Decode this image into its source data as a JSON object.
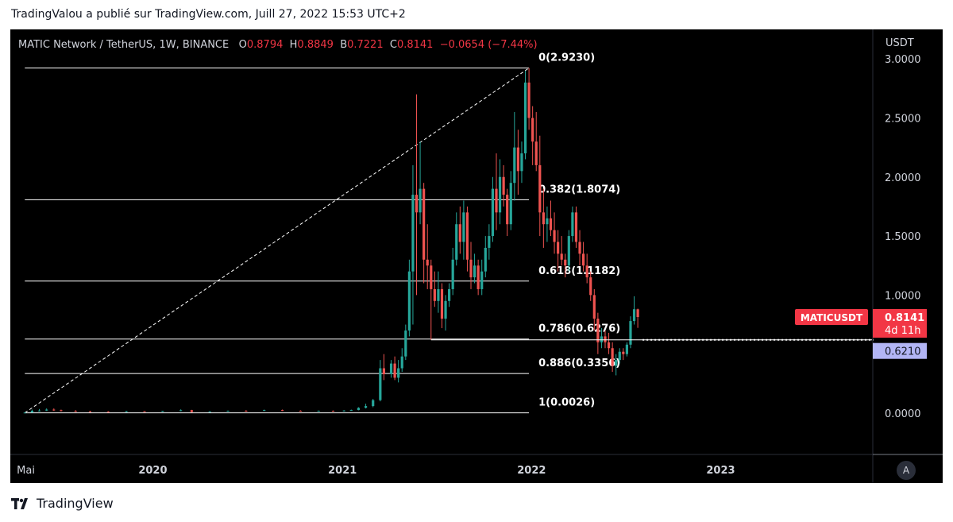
{
  "publisher_line": "TradingValou a publié sur TradingView.com, Juill 27, 2022 15:53 UTC+2",
  "brand": "TradingView",
  "legend": {
    "symbol": "MATIC Network / TetherUS, 1W, BINANCE",
    "o_label": "O",
    "o": "0.8794",
    "h_label": "H",
    "h": "0.8849",
    "l_label": "B",
    "l": "0.7221",
    "c_label": "C",
    "c": "0.8141",
    "change": "−0.0654 (−7.44%)"
  },
  "axis_unit": "USDT",
  "auto_button": "A",
  "price_labels": {
    "symbol_tag": "MATICUSDT",
    "last_price": "0.8141",
    "countdown": "4d 11h",
    "line_price": "0.6210"
  },
  "colors": {
    "up": "#26a69a",
    "down": "#ef5350",
    "fib_line": "#ffffff",
    "tag": "#f23645",
    "line_tag": "#b2b5f5"
  },
  "chart_data": {
    "type": "candlestick",
    "y_ticks": [
      "3.0000",
      "2.5000",
      "2.0000",
      "1.5000",
      "1.0000",
      "0.0000"
    ],
    "y_tick_values": [
      3.0,
      2.5,
      2.0,
      1.5,
      1.0,
      0.0
    ],
    "x_ticks": [
      "Mai",
      "2020",
      "2021",
      "2022",
      "2023"
    ],
    "x_tick_dates": [
      "2019-05-01",
      "2020-01-01",
      "2021-01-01",
      "2022-01-01",
      "2023-01-01"
    ],
    "ylim": [
      -0.35,
      3.25
    ],
    "xlim": [
      "2019-04-01",
      "2023-10-20"
    ],
    "fib_anchor_start": {
      "date": "2019-04-29",
      "price": 0.0026
    },
    "fib_anchor_end": {
      "date": "2021-12-27",
      "price": 2.923
    },
    "fib_levels": [
      {
        "label": "0(2.9230)",
        "price": 2.923
      },
      {
        "label": "0.382(1.8074)",
        "price": 1.8074
      },
      {
        "label": "0.618(1.1182)",
        "price": 1.1182
      },
      {
        "label": "0.786(0.6276)",
        "price": 0.6276
      },
      {
        "label": "0.886(0.3356)",
        "price": 0.3356
      },
      {
        "label": "1(0.0026)",
        "price": 0.0026
      }
    ],
    "horizontal_ray": {
      "date_start": "2021-06-21",
      "price": 0.621
    },
    "last_close": 0.8141,
    "candles": [
      {
        "date": "2019-04-29",
        "o": 0.003,
        "h": 0.006,
        "l": 0.002,
        "c": 0.005
      },
      {
        "date": "2019-05-13",
        "o": 0.005,
        "h": 0.03,
        "l": 0.005,
        "c": 0.02
      },
      {
        "date": "2019-05-27",
        "o": 0.02,
        "h": 0.035,
        "l": 0.015,
        "c": 0.022
      },
      {
        "date": "2019-06-10",
        "o": 0.022,
        "h": 0.04,
        "l": 0.018,
        "c": 0.03
      },
      {
        "date": "2019-06-24",
        "o": 0.03,
        "h": 0.04,
        "l": 0.02,
        "c": 0.025
      },
      {
        "date": "2019-07-08",
        "o": 0.025,
        "h": 0.03,
        "l": 0.015,
        "c": 0.018
      },
      {
        "date": "2019-08-05",
        "o": 0.018,
        "h": 0.025,
        "l": 0.012,
        "c": 0.015
      },
      {
        "date": "2019-09-02",
        "o": 0.015,
        "h": 0.02,
        "l": 0.01,
        "c": 0.012
      },
      {
        "date": "2019-10-07",
        "o": 0.012,
        "h": 0.016,
        "l": 0.008,
        "c": 0.01
      },
      {
        "date": "2019-11-11",
        "o": 0.01,
        "h": 0.02,
        "l": 0.009,
        "c": 0.016
      },
      {
        "date": "2019-12-16",
        "o": 0.016,
        "h": 0.018,
        "l": 0.01,
        "c": 0.012
      },
      {
        "date": "2020-01-20",
        "o": 0.012,
        "h": 0.02,
        "l": 0.011,
        "c": 0.018
      },
      {
        "date": "2020-02-24",
        "o": 0.018,
        "h": 0.032,
        "l": 0.016,
        "c": 0.025
      },
      {
        "date": "2020-03-16",
        "o": 0.025,
        "h": 0.028,
        "l": 0.006,
        "c": 0.01
      },
      {
        "date": "2020-04-20",
        "o": 0.01,
        "h": 0.016,
        "l": 0.009,
        "c": 0.014
      },
      {
        "date": "2020-05-25",
        "o": 0.014,
        "h": 0.022,
        "l": 0.013,
        "c": 0.02
      },
      {
        "date": "2020-06-29",
        "o": 0.02,
        "h": 0.025,
        "l": 0.017,
        "c": 0.019
      },
      {
        "date": "2020-08-03",
        "o": 0.019,
        "h": 0.03,
        "l": 0.018,
        "c": 0.026
      },
      {
        "date": "2020-09-07",
        "o": 0.026,
        "h": 0.03,
        "l": 0.018,
        "c": 0.02
      },
      {
        "date": "2020-10-12",
        "o": 0.02,
        "h": 0.024,
        "l": 0.015,
        "c": 0.017
      },
      {
        "date": "2020-11-16",
        "o": 0.017,
        "h": 0.022,
        "l": 0.015,
        "c": 0.02
      },
      {
        "date": "2020-12-14",
        "o": 0.02,
        "h": 0.022,
        "l": 0.016,
        "c": 0.018
      },
      {
        "date": "2021-01-04",
        "o": 0.018,
        "h": 0.025,
        "l": 0.016,
        "c": 0.022
      },
      {
        "date": "2021-01-18",
        "o": 0.022,
        "h": 0.03,
        "l": 0.02,
        "c": 0.026
      },
      {
        "date": "2021-02-01",
        "o": 0.026,
        "h": 0.05,
        "l": 0.024,
        "c": 0.045
      },
      {
        "date": "2021-02-15",
        "o": 0.045,
        "h": 0.08,
        "l": 0.04,
        "c": 0.06
      },
      {
        "date": "2021-03-01",
        "o": 0.06,
        "h": 0.12,
        "l": 0.05,
        "c": 0.11
      },
      {
        "date": "2021-03-15",
        "o": 0.11,
        "h": 0.45,
        "l": 0.1,
        "c": 0.38
      },
      {
        "date": "2021-03-22",
        "o": 0.38,
        "h": 0.5,
        "l": 0.28,
        "c": 0.33
      },
      {
        "date": "2021-04-05",
        "o": 0.33,
        "h": 0.45,
        "l": 0.3,
        "c": 0.42
      },
      {
        "date": "2021-04-12",
        "o": 0.42,
        "h": 0.48,
        "l": 0.28,
        "c": 0.3
      },
      {
        "date": "2021-04-19",
        "o": 0.3,
        "h": 0.45,
        "l": 0.26,
        "c": 0.38
      },
      {
        "date": "2021-04-26",
        "o": 0.38,
        "h": 0.55,
        "l": 0.35,
        "c": 0.48
      },
      {
        "date": "2021-05-03",
        "o": 0.48,
        "h": 0.75,
        "l": 0.45,
        "c": 0.7
      },
      {
        "date": "2021-05-10",
        "o": 0.7,
        "h": 1.3,
        "l": 0.65,
        "c": 1.2
      },
      {
        "date": "2021-05-17",
        "o": 1.2,
        "h": 2.1,
        "l": 0.75,
        "c": 1.85
      },
      {
        "date": "2021-05-24",
        "o": 1.85,
        "h": 2.7,
        "l": 1.0,
        "c": 1.7
      },
      {
        "date": "2021-05-31",
        "o": 1.7,
        "h": 2.3,
        "l": 1.6,
        "c": 1.9
      },
      {
        "date": "2021-06-07",
        "o": 1.9,
        "h": 1.95,
        "l": 1.1,
        "c": 1.3
      },
      {
        "date": "2021-06-14",
        "o": 1.3,
        "h": 1.6,
        "l": 1.05,
        "c": 1.25
      },
      {
        "date": "2021-06-21",
        "o": 1.25,
        "h": 1.3,
        "l": 0.62,
        "c": 1.05
      },
      {
        "date": "2021-06-28",
        "o": 1.05,
        "h": 1.2,
        "l": 0.9,
        "c": 0.95
      },
      {
        "date": "2021-07-05",
        "o": 0.95,
        "h": 1.2,
        "l": 0.85,
        "c": 1.05
      },
      {
        "date": "2021-07-12",
        "o": 1.05,
        "h": 1.1,
        "l": 0.72,
        "c": 0.8
      },
      {
        "date": "2021-07-19",
        "o": 0.8,
        "h": 1.0,
        "l": 0.7,
        "c": 0.95
      },
      {
        "date": "2021-07-26",
        "o": 0.95,
        "h": 1.1,
        "l": 0.9,
        "c": 1.05
      },
      {
        "date": "2021-08-02",
        "o": 1.05,
        "h": 1.4,
        "l": 1.0,
        "c": 1.3
      },
      {
        "date": "2021-08-09",
        "o": 1.3,
        "h": 1.7,
        "l": 1.25,
        "c": 1.6
      },
      {
        "date": "2021-08-16",
        "o": 1.6,
        "h": 1.75,
        "l": 1.35,
        "c": 1.45
      },
      {
        "date": "2021-08-23",
        "o": 1.45,
        "h": 1.8,
        "l": 1.3,
        "c": 1.7
      },
      {
        "date": "2021-08-30",
        "o": 1.7,
        "h": 1.75,
        "l": 1.2,
        "c": 1.3
      },
      {
        "date": "2021-09-06",
        "o": 1.3,
        "h": 1.45,
        "l": 1.05,
        "c": 1.15
      },
      {
        "date": "2021-09-13",
        "o": 1.15,
        "h": 1.35,
        "l": 1.1,
        "c": 1.25
      },
      {
        "date": "2021-09-20",
        "o": 1.25,
        "h": 1.3,
        "l": 1.0,
        "c": 1.05
      },
      {
        "date": "2021-09-27",
        "o": 1.05,
        "h": 1.3,
        "l": 1.0,
        "c": 1.2
      },
      {
        "date": "2021-10-04",
        "o": 1.2,
        "h": 1.5,
        "l": 1.15,
        "c": 1.4
      },
      {
        "date": "2021-10-11",
        "o": 1.4,
        "h": 1.6,
        "l": 1.3,
        "c": 1.5
      },
      {
        "date": "2021-10-18",
        "o": 1.5,
        "h": 2.0,
        "l": 1.45,
        "c": 1.9
      },
      {
        "date": "2021-10-25",
        "o": 1.9,
        "h": 2.2,
        "l": 1.55,
        "c": 1.7
      },
      {
        "date": "2021-11-01",
        "o": 1.7,
        "h": 2.15,
        "l": 1.6,
        "c": 2.0
      },
      {
        "date": "2021-11-08",
        "o": 2.0,
        "h": 2.1,
        "l": 1.75,
        "c": 1.85
      },
      {
        "date": "2021-11-15",
        "o": 1.85,
        "h": 1.9,
        "l": 1.5,
        "c": 1.6
      },
      {
        "date": "2021-11-22",
        "o": 1.6,
        "h": 2.05,
        "l": 1.55,
        "c": 1.95
      },
      {
        "date": "2021-11-29",
        "o": 1.95,
        "h": 2.55,
        "l": 1.8,
        "c": 2.25
      },
      {
        "date": "2021-12-06",
        "o": 2.25,
        "h": 2.4,
        "l": 1.85,
        "c": 2.05
      },
      {
        "date": "2021-12-13",
        "o": 2.05,
        "h": 2.3,
        "l": 1.95,
        "c": 2.2
      },
      {
        "date": "2021-12-20",
        "o": 2.2,
        "h": 2.9,
        "l": 2.15,
        "c": 2.8
      },
      {
        "date": "2021-12-27",
        "o": 2.8,
        "h": 2.923,
        "l": 2.4,
        "c": 2.5
      },
      {
        "date": "2022-01-03",
        "o": 2.5,
        "h": 2.6,
        "l": 2.1,
        "c": 2.3
      },
      {
        "date": "2022-01-10",
        "o": 2.3,
        "h": 2.55,
        "l": 2.05,
        "c": 2.1
      },
      {
        "date": "2022-01-17",
        "o": 2.1,
        "h": 2.35,
        "l": 1.5,
        "c": 1.7
      },
      {
        "date": "2022-01-24",
        "o": 1.7,
        "h": 1.9,
        "l": 1.4,
        "c": 1.6
      },
      {
        "date": "2022-01-31",
        "o": 1.6,
        "h": 1.75,
        "l": 1.45,
        "c": 1.65
      },
      {
        "date": "2022-02-07",
        "o": 1.65,
        "h": 1.8,
        "l": 1.5,
        "c": 1.55
      },
      {
        "date": "2022-02-14",
        "o": 1.55,
        "h": 1.7,
        "l": 1.35,
        "c": 1.45
      },
      {
        "date": "2022-02-21",
        "o": 1.45,
        "h": 1.55,
        "l": 1.2,
        "c": 1.35
      },
      {
        "date": "2022-02-28",
        "o": 1.35,
        "h": 1.5,
        "l": 1.25,
        "c": 1.3
      },
      {
        "date": "2022-03-07",
        "o": 1.3,
        "h": 1.35,
        "l": 1.15,
        "c": 1.25
      },
      {
        "date": "2022-03-14",
        "o": 1.25,
        "h": 1.55,
        "l": 1.2,
        "c": 1.5
      },
      {
        "date": "2022-03-21",
        "o": 1.5,
        "h": 1.75,
        "l": 1.45,
        "c": 1.7
      },
      {
        "date": "2022-03-28",
        "o": 1.7,
        "h": 1.75,
        "l": 1.4,
        "c": 1.45
      },
      {
        "date": "2022-04-04",
        "o": 1.45,
        "h": 1.55,
        "l": 1.25,
        "c": 1.35
      },
      {
        "date": "2022-04-11",
        "o": 1.35,
        "h": 1.45,
        "l": 1.2,
        "c": 1.25
      },
      {
        "date": "2022-04-18",
        "o": 1.25,
        "h": 1.35,
        "l": 1.1,
        "c": 1.15
      },
      {
        "date": "2022-04-25",
        "o": 1.15,
        "h": 1.2,
        "l": 0.95,
        "c": 1.0
      },
      {
        "date": "2022-05-02",
        "o": 1.0,
        "h": 1.05,
        "l": 0.7,
        "c": 0.8
      },
      {
        "date": "2022-05-09",
        "o": 0.8,
        "h": 0.85,
        "l": 0.5,
        "c": 0.6
      },
      {
        "date": "2022-05-16",
        "o": 0.6,
        "h": 0.72,
        "l": 0.55,
        "c": 0.65
      },
      {
        "date": "2022-05-23",
        "o": 0.65,
        "h": 0.7,
        "l": 0.55,
        "c": 0.6
      },
      {
        "date": "2022-05-30",
        "o": 0.6,
        "h": 0.68,
        "l": 0.5,
        "c": 0.55
      },
      {
        "date": "2022-06-06",
        "o": 0.55,
        "h": 0.6,
        "l": 0.35,
        "c": 0.4
      },
      {
        "date": "2022-06-13",
        "o": 0.4,
        "h": 0.5,
        "l": 0.32,
        "c": 0.45
      },
      {
        "date": "2022-06-20",
        "o": 0.45,
        "h": 0.55,
        "l": 0.42,
        "c": 0.52
      },
      {
        "date": "2022-06-27",
        "o": 0.52,
        "h": 0.55,
        "l": 0.45,
        "c": 0.5
      },
      {
        "date": "2022-07-04",
        "o": 0.5,
        "h": 0.6,
        "l": 0.48,
        "c": 0.58
      },
      {
        "date": "2022-07-11",
        "o": 0.58,
        "h": 0.82,
        "l": 0.55,
        "c": 0.78
      },
      {
        "date": "2022-07-18",
        "o": 0.78,
        "h": 0.99,
        "l": 0.75,
        "c": 0.88
      },
      {
        "date": "2022-07-25",
        "o": 0.8794,
        "h": 0.8849,
        "l": 0.7221,
        "c": 0.8141
      }
    ]
  }
}
